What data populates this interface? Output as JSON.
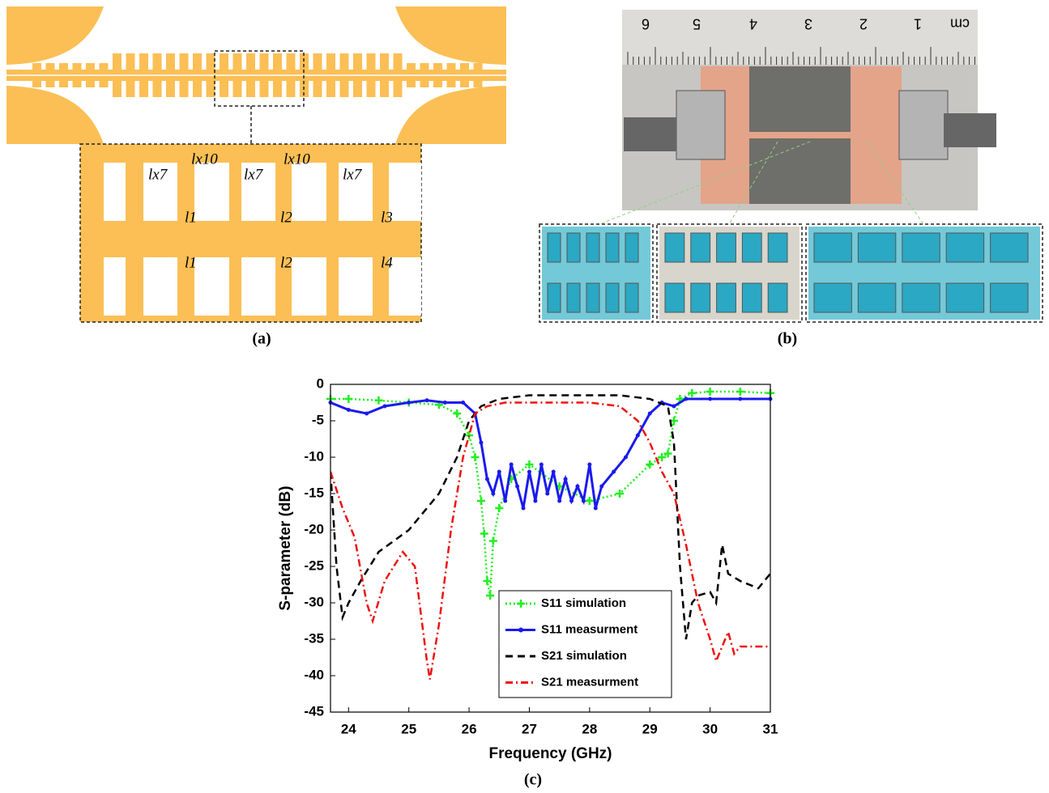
{
  "figure": {
    "panel_a": {
      "label": "(a)",
      "annotations": [
        "lx7",
        "lx10",
        "lx7",
        "lx10",
        "lx7",
        "l1",
        "l2",
        "l3",
        "l1",
        "l2",
        "l4"
      ]
    },
    "panel_b": {
      "label": "(b)",
      "ruler_labels": [
        "6",
        "5",
        "4",
        "3",
        "2",
        "1",
        "cm"
      ]
    },
    "panel_c": {
      "label": "(c)"
    }
  },
  "chart_data": {
    "type": "line",
    "x_label": "Frequency (GHz)",
    "y_label": "S-parameter (dB)",
    "xlim": [
      23.7,
      31
    ],
    "xticks": [
      24,
      25,
      26,
      27,
      28,
      29,
      30,
      31
    ],
    "ylim": [
      -45,
      0
    ],
    "yticks": [
      0,
      -5,
      -10,
      -15,
      -20,
      -25,
      -30,
      -35,
      -40,
      -45
    ],
    "grid": false,
    "legend": "lower center",
    "series": [
      {
        "name": "S11 simulation",
        "color": "#22ee22",
        "style": "dotted",
        "marker": "+",
        "x": [
          23.7,
          24,
          24.5,
          25,
          25.5,
          25.8,
          26,
          26.1,
          26.2,
          26.25,
          26.3,
          26.35,
          26.4,
          26.5,
          26.7,
          27,
          27.5,
          28,
          28.5,
          29,
          29.2,
          29.3,
          29.4,
          29.5,
          29.7,
          30,
          30.5,
          31
        ],
        "values": [
          -2,
          -2,
          -2.2,
          -2.5,
          -2.8,
          -4,
          -7,
          -10,
          -16,
          -20.5,
          -27,
          -29,
          -21.5,
          -17,
          -13,
          -11,
          -14,
          -16,
          -15,
          -11,
          -10,
          -9.5,
          -5,
          -2,
          -1.2,
          -1,
          -1,
          -1.2
        ]
      },
      {
        "name": "S11 measurment",
        "color": "#1a1aee",
        "style": "solid",
        "marker": ".",
        "x": [
          23.7,
          24,
          24.3,
          24.6,
          25,
          25.3,
          25.6,
          25.9,
          26.1,
          26.2,
          26.3,
          26.4,
          26.5,
          26.6,
          26.7,
          26.8,
          26.9,
          27,
          27.1,
          27.2,
          27.3,
          27.4,
          27.5,
          27.6,
          27.7,
          27.8,
          27.9,
          28,
          28.1,
          28.2,
          28.4,
          28.6,
          28.8,
          29,
          29.2,
          29.4,
          29.6,
          30,
          30.5,
          31
        ],
        "values": [
          -2.5,
          -3.5,
          -4,
          -3,
          -2.5,
          -2.2,
          -2.5,
          -2.5,
          -4,
          -8,
          -13,
          -15,
          -12,
          -16,
          -11,
          -14,
          -17,
          -12,
          -16,
          -11,
          -15,
          -12,
          -16,
          -13,
          -16,
          -14,
          -16,
          -11,
          -17,
          -14,
          -12,
          -10,
          -7,
          -4,
          -2.5,
          -3,
          -2,
          -2,
          -2,
          -2
        ]
      },
      {
        "name": "S21 simulation",
        "color": "#000000",
        "style": "dashed",
        "marker": "none",
        "x": [
          23.7,
          23.8,
          23.9,
          24,
          24.2,
          24.5,
          25,
          25.5,
          25.8,
          26,
          26.2,
          26.5,
          27,
          27.5,
          28,
          28.5,
          29,
          29.3,
          29.4,
          29.5,
          29.6,
          29.7,
          29.8,
          30,
          30.1,
          30.2,
          30.3,
          30.5,
          30.8,
          31
        ],
        "values": [
          -12,
          -25,
          -32,
          -30,
          -27,
          -23,
          -20,
          -15,
          -10,
          -5,
          -3,
          -2,
          -1.5,
          -1.5,
          -1.5,
          -1.5,
          -2,
          -3,
          -8,
          -25,
          -35,
          -30,
          -29,
          -28.5,
          -30,
          -22,
          -26,
          -27,
          -28,
          -26
        ]
      },
      {
        "name": "S21 measurment",
        "color": "#ee1111",
        "style": "dashdot",
        "marker": "none",
        "x": [
          23.7,
          23.9,
          24.1,
          24.3,
          24.4,
          24.6,
          24.9,
          25.1,
          25.3,
          25.35,
          25.5,
          25.7,
          25.9,
          26.1,
          26.3,
          26.6,
          27,
          27.5,
          28,
          28.5,
          28.8,
          29,
          29.2,
          29.4,
          29.6,
          29.8,
          30,
          30.1,
          30.2,
          30.3,
          30.4,
          30.5,
          31
        ],
        "values": [
          -12,
          -17,
          -21,
          -30,
          -32.5,
          -27,
          -23,
          -25,
          -38,
          -40.5,
          -33,
          -20,
          -10,
          -4,
          -3,
          -2.5,
          -2.5,
          -2.5,
          -2.5,
          -3,
          -5,
          -8,
          -12,
          -15,
          -22,
          -30,
          -35,
          -38,
          -36,
          -34,
          -37,
          -36,
          -36
        ]
      }
    ]
  }
}
